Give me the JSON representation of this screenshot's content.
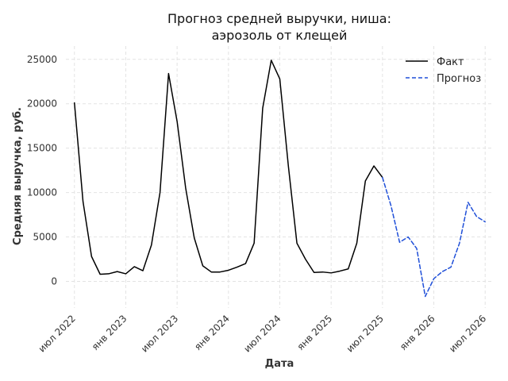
{
  "chart_data": {
    "type": "line",
    "title": [
      "Прогноз средней выручки, ниша:",
      "аэрозоль от клещей"
    ],
    "xlabel": "Дата",
    "ylabel": "Средняя выручка, руб.",
    "x_ticks": [
      {
        "date": "2022-07",
        "label": "июл 2022"
      },
      {
        "date": "2023-01",
        "label": "янв 2023"
      },
      {
        "date": "2023-07",
        "label": "июл 2023"
      },
      {
        "date": "2024-01",
        "label": "янв 2024"
      },
      {
        "date": "2024-07",
        "label": "июл 2024"
      },
      {
        "date": "2025-01",
        "label": "янв 2025"
      },
      {
        "date": "2025-07",
        "label": "июл 2025"
      },
      {
        "date": "2026-01",
        "label": "янв 2026"
      },
      {
        "date": "2026-07",
        "label": "июл 2026"
      }
    ],
    "y_ticks": [
      0,
      5000,
      10000,
      15000,
      20000,
      25000
    ],
    "xlim": [
      "2022-06",
      "2026-08"
    ],
    "ylim": [
      -3000,
      26500
    ],
    "grid": true,
    "legend_position": "top-right",
    "series": [
      {
        "name": "Факт",
        "color": "#000000",
        "style": "solid",
        "points": [
          [
            "2022-07",
            20100
          ],
          [
            "2022-08",
            9000
          ],
          [
            "2022-09",
            2800
          ],
          [
            "2022-10",
            800
          ],
          [
            "2022-11",
            850
          ],
          [
            "2022-12",
            1100
          ],
          [
            "2023-01",
            850
          ],
          [
            "2023-02",
            1650
          ],
          [
            "2023-03",
            1200
          ],
          [
            "2023-04",
            4100
          ],
          [
            "2023-05",
            10000
          ],
          [
            "2023-06",
            23400
          ],
          [
            "2023-07",
            18000
          ],
          [
            "2023-08",
            10500
          ],
          [
            "2023-09",
            4900
          ],
          [
            "2023-10",
            1750
          ],
          [
            "2023-11",
            1050
          ],
          [
            "2023-12",
            1050
          ],
          [
            "2024-01",
            1250
          ],
          [
            "2024-02",
            1600
          ],
          [
            "2024-03",
            2000
          ],
          [
            "2024-04",
            4300
          ],
          [
            "2024-05",
            19500
          ],
          [
            "2024-06",
            24900
          ],
          [
            "2024-07",
            22800
          ],
          [
            "2024-08",
            13000
          ],
          [
            "2024-09",
            4300
          ],
          [
            "2024-10",
            2500
          ],
          [
            "2024-11",
            1000
          ],
          [
            "2024-12",
            1050
          ],
          [
            "2025-01",
            950
          ],
          [
            "2025-02",
            1150
          ],
          [
            "2025-03",
            1400
          ],
          [
            "2025-04",
            4300
          ],
          [
            "2025-05",
            11300
          ],
          [
            "2025-06",
            13000
          ],
          [
            "2025-07",
            11700
          ]
        ]
      },
      {
        "name": "Прогноз",
        "color": "#1f4fd8",
        "style": "dashed",
        "points": [
          [
            "2025-07",
            11700
          ],
          [
            "2025-08",
            8500
          ],
          [
            "2025-09",
            4400
          ],
          [
            "2025-10",
            5000
          ],
          [
            "2025-11",
            3700
          ],
          [
            "2025-12",
            -1700
          ],
          [
            "2026-01",
            300
          ],
          [
            "2026-02",
            1100
          ],
          [
            "2026-03",
            1600
          ],
          [
            "2026-04",
            4300
          ],
          [
            "2026-05",
            8900
          ],
          [
            "2026-06",
            7300
          ],
          [
            "2026-07",
            6700
          ]
        ]
      }
    ]
  }
}
